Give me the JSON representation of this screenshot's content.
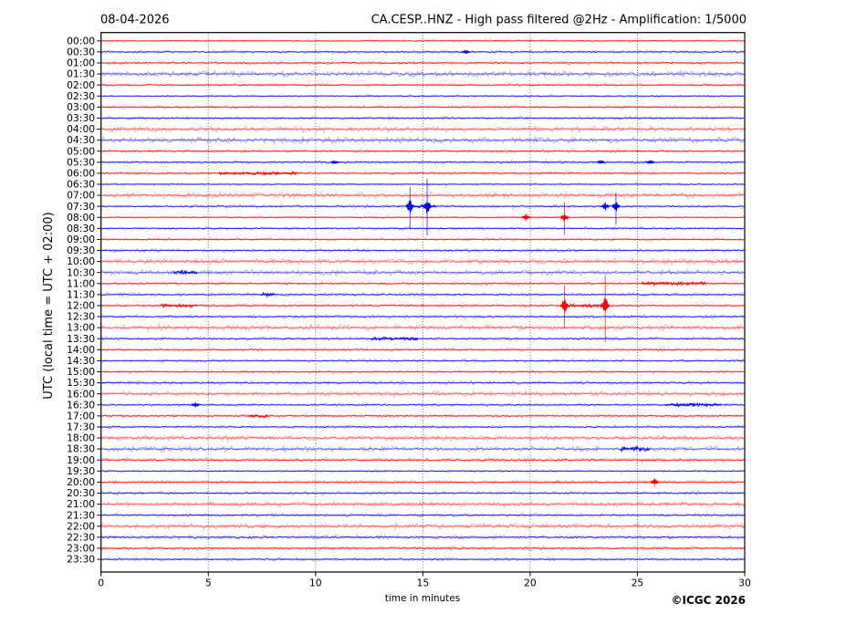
{
  "chart_data": {
    "type": "line",
    "variant": "helicorder-seismogram",
    "date_label": "08-04-2026",
    "title": "CA.CESP..HNZ - High pass filtered @2Hz - Amplification: 1/5000",
    "ylabel": "UTC (local time = UTC + 02:00)",
    "xlabel": "time in minutes",
    "copyright": "©ICGC 2026",
    "xlim": [
      0,
      30
    ],
    "x_ticks": [
      0,
      5,
      10,
      15,
      20,
      25,
      30
    ],
    "grid_minutes": [
      5,
      10,
      15,
      20,
      25
    ],
    "grid_on": true,
    "minutes_per_row": 30,
    "colors": {
      "trace_red": "#ff0000",
      "trace_blue": "#0000ee",
      "grid": "#555555",
      "frame": "#000000",
      "background": "#ffffff"
    },
    "rows_note": "amp = background noise half-band px; segments = [startMin,endMin] denser noise; events = [minute, spikeUpPx, spikeDownPx, burstHalfHeightPx]",
    "rows": [
      {
        "label": "00:00",
        "color": "red",
        "amp": 0.6,
        "segments": [],
        "events": []
      },
      {
        "label": "00:30",
        "color": "blue",
        "amp": 0.9,
        "segments": [],
        "events": [
          [
            17.0,
            0,
            0,
            1.5
          ]
        ]
      },
      {
        "label": "01:00",
        "color": "red",
        "amp": 1.1,
        "segments": [],
        "events": []
      },
      {
        "label": "01:30",
        "color": "blue",
        "amp": 1.7,
        "segments": [],
        "events": []
      },
      {
        "label": "02:00",
        "color": "red",
        "amp": 0.9,
        "segments": [],
        "events": []
      },
      {
        "label": "02:30",
        "color": "blue",
        "amp": 0.6,
        "segments": [],
        "events": []
      },
      {
        "label": "03:00",
        "color": "red",
        "amp": 0.9,
        "segments": [],
        "events": []
      },
      {
        "label": "03:30",
        "color": "blue",
        "amp": 0.9,
        "segments": [],
        "events": []
      },
      {
        "label": "04:00",
        "color": "red",
        "amp": 1.7,
        "segments": [],
        "events": []
      },
      {
        "label": "04:30",
        "color": "blue",
        "amp": 1.7,
        "segments": [],
        "events": []
      },
      {
        "label": "05:00",
        "color": "red",
        "amp": 0.9,
        "segments": [],
        "events": []
      },
      {
        "label": "05:30",
        "color": "blue",
        "amp": 0.9,
        "segments": [],
        "events": [
          [
            10.9,
            0,
            0,
            2
          ],
          [
            23.3,
            0,
            0,
            2
          ],
          [
            25.6,
            0,
            0,
            2.5
          ]
        ]
      },
      {
        "label": "06:00",
        "color": "red",
        "amp": 1.0,
        "segments": [
          [
            5.5,
            9.2
          ]
        ],
        "events": []
      },
      {
        "label": "06:30",
        "color": "blue",
        "amp": 0.6,
        "segments": [],
        "events": []
      },
      {
        "label": "07:00",
        "color": "red",
        "amp": 1.7,
        "segments": [],
        "events": []
      },
      {
        "label": "07:30",
        "color": "blue",
        "amp": 0.9,
        "segments": [
          [
            14.2,
            15.6
          ]
        ],
        "events": [
          [
            14.4,
            21,
            24,
            8
          ],
          [
            15.2,
            30,
            32,
            9
          ],
          [
            23.5,
            5,
            5,
            4
          ],
          [
            24.0,
            15,
            20,
            6
          ]
        ]
      },
      {
        "label": "08:00",
        "color": "red",
        "amp": 0.6,
        "segments": [],
        "events": [
          [
            19.8,
            4,
            4,
            3.5
          ],
          [
            21.6,
            17,
            19,
            5
          ]
        ]
      },
      {
        "label": "08:30",
        "color": "blue",
        "amp": 0.8,
        "segments": [],
        "events": []
      },
      {
        "label": "09:00",
        "color": "red",
        "amp": 0.9,
        "segments": [],
        "events": []
      },
      {
        "label": "09:30",
        "color": "blue",
        "amp": 1.0,
        "segments": [],
        "events": []
      },
      {
        "label": "10:00",
        "color": "red",
        "amp": 1.7,
        "segments": [],
        "events": []
      },
      {
        "label": "10:30",
        "color": "blue",
        "amp": 1.5,
        "segments": [
          [
            3.4,
            4.5
          ]
        ],
        "events": []
      },
      {
        "label": "11:00",
        "color": "red",
        "amp": 1.0,
        "segments": [
          [
            25.2,
            28.2
          ]
        ],
        "events": []
      },
      {
        "label": "11:30",
        "color": "blue",
        "amp": 1.0,
        "segments": [
          [
            7.5,
            8.1
          ]
        ],
        "events": []
      },
      {
        "label": "12:00",
        "color": "red",
        "amp": 1.0,
        "segments": [
          [
            2.8,
            4.5
          ],
          [
            21.7,
            23.4
          ]
        ],
        "events": [
          [
            21.6,
            22,
            25,
            9
          ],
          [
            23.5,
            33,
            40,
            10
          ]
        ]
      },
      {
        "label": "12:30",
        "color": "blue",
        "amp": 1.0,
        "segments": [],
        "events": []
      },
      {
        "label": "13:00",
        "color": "red",
        "amp": 1.7,
        "segments": [],
        "events": []
      },
      {
        "label": "13:30",
        "color": "blue",
        "amp": 1.0,
        "segments": [
          [
            12.6,
            14.8
          ]
        ],
        "events": []
      },
      {
        "label": "14:00",
        "color": "red",
        "amp": 1.0,
        "segments": [],
        "events": []
      },
      {
        "label": "14:30",
        "color": "blue",
        "amp": 0.9,
        "segments": [],
        "events": []
      },
      {
        "label": "15:00",
        "color": "red",
        "amp": 0.9,
        "segments": [],
        "events": []
      },
      {
        "label": "15:30",
        "color": "blue",
        "amp": 1.1,
        "segments": [],
        "events": []
      },
      {
        "label": "16:00",
        "color": "red",
        "amp": 1.5,
        "segments": [],
        "events": []
      },
      {
        "label": "16:30",
        "color": "blue",
        "amp": 0.9,
        "segments": [
          [
            26.3,
            28.9
          ]
        ],
        "events": [
          [
            4.4,
            3,
            3,
            2.5
          ]
        ]
      },
      {
        "label": "17:00",
        "color": "red",
        "amp": 1.0,
        "segments": [
          [
            6.9,
            7.8
          ]
        ],
        "events": []
      },
      {
        "label": "17:30",
        "color": "blue",
        "amp": 0.9,
        "segments": [],
        "events": []
      },
      {
        "label": "18:00",
        "color": "red",
        "amp": 1.7,
        "segments": [],
        "events": []
      },
      {
        "label": "18:30",
        "color": "blue",
        "amp": 1.6,
        "segments": [
          [
            24.2,
            25.6
          ]
        ],
        "events": []
      },
      {
        "label": "19:00",
        "color": "red",
        "amp": 1.3,
        "segments": [],
        "events": []
      },
      {
        "label": "19:30",
        "color": "blue",
        "amp": 0.7,
        "segments": [],
        "events": []
      },
      {
        "label": "20:00",
        "color": "red",
        "amp": 1.0,
        "segments": [],
        "events": [
          [
            25.8,
            4,
            5,
            4
          ]
        ]
      },
      {
        "label": "20:30",
        "color": "blue",
        "amp": 1.0,
        "segments": [],
        "events": []
      },
      {
        "label": "21:00",
        "color": "red",
        "amp": 1.5,
        "segments": [],
        "events": []
      },
      {
        "label": "21:30",
        "color": "blue",
        "amp": 1.0,
        "segments": [],
        "events": []
      },
      {
        "label": "22:00",
        "color": "red",
        "amp": 1.7,
        "segments": [],
        "events": []
      },
      {
        "label": "22:30",
        "color": "blue",
        "amp": 1.2,
        "segments": [],
        "events": []
      },
      {
        "label": "23:00",
        "color": "red",
        "amp": 1.2,
        "segments": [],
        "events": []
      },
      {
        "label": "23:30",
        "color": "blue",
        "amp": 0.9,
        "segments": [],
        "events": []
      }
    ]
  }
}
